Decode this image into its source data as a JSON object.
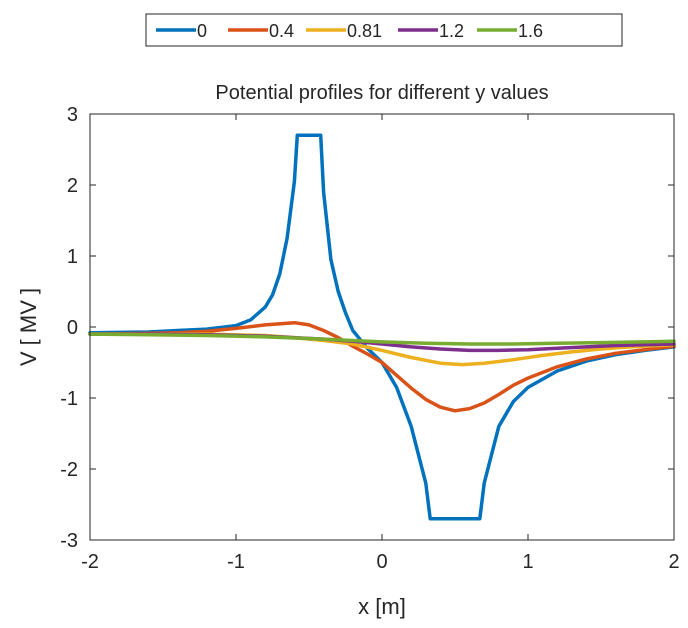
{
  "chart_data": {
    "type": "line",
    "title": "Potential profiles for different y values",
    "xlabel": "x  [m]",
    "ylabel": "V  [ MV ]",
    "xlim": [
      -2,
      2
    ],
    "ylim": [
      -3,
      3
    ],
    "xticks": [
      -2,
      -1,
      0,
      1,
      2
    ],
    "yticks": [
      -3,
      -2,
      -1,
      0,
      1,
      2,
      3
    ],
    "xtick_labels": [
      "-2",
      "-1",
      "0",
      "1",
      "2"
    ],
    "ytick_labels": [
      "-3",
      "-2",
      "-1",
      "0",
      "1",
      "2",
      "3"
    ],
    "grid": false,
    "legend_position": "top, outside, horizontal",
    "series": [
      {
        "name": "0",
        "color": "#0072BD",
        "x": [
          -2.0,
          -1.6,
          -1.4,
          -1.2,
          -1.0,
          -0.9,
          -0.8,
          -0.75,
          -0.7,
          -0.65,
          -0.6,
          -0.58,
          -0.56,
          -0.44,
          -0.42,
          -0.4,
          -0.35,
          -0.3,
          -0.25,
          -0.2,
          -0.1,
          0.0,
          0.1,
          0.2,
          0.3,
          0.33,
          0.67,
          0.7,
          0.8,
          0.9,
          1.0,
          1.2,
          1.4,
          1.6,
          1.8,
          2.0
        ],
        "y": [
          -0.08,
          -0.07,
          -0.05,
          -0.03,
          0.02,
          0.1,
          0.28,
          0.45,
          0.75,
          1.25,
          2.05,
          2.7,
          2.7,
          2.7,
          2.7,
          1.9,
          0.95,
          0.5,
          0.2,
          -0.05,
          -0.3,
          -0.5,
          -0.85,
          -1.4,
          -2.2,
          -2.7,
          -2.7,
          -2.2,
          -1.4,
          -1.05,
          -0.85,
          -0.62,
          -0.48,
          -0.39,
          -0.33,
          -0.28
        ]
      },
      {
        "name": "0.4",
        "color": "#D95319",
        "x": [
          -2.0,
          -1.6,
          -1.4,
          -1.2,
          -1.0,
          -0.8,
          -0.6,
          -0.5,
          -0.4,
          -0.3,
          -0.2,
          -0.1,
          0.0,
          0.1,
          0.2,
          0.3,
          0.4,
          0.5,
          0.6,
          0.7,
          0.8,
          0.9,
          1.0,
          1.2,
          1.4,
          1.6,
          1.8,
          2.0
        ],
        "y": [
          -0.1,
          -0.09,
          -0.08,
          -0.06,
          -0.02,
          0.03,
          0.06,
          0.03,
          -0.05,
          -0.15,
          -0.27,
          -0.38,
          -0.5,
          -0.68,
          -0.86,
          -1.02,
          -1.13,
          -1.18,
          -1.15,
          -1.07,
          -0.95,
          -0.82,
          -0.72,
          -0.56,
          -0.45,
          -0.37,
          -0.32,
          -0.27
        ]
      },
      {
        "name": "0.81",
        "color": "#EDB120",
        "x": [
          -2.0,
          -1.6,
          -1.2,
          -0.8,
          -0.6,
          -0.4,
          -0.2,
          0.0,
          0.2,
          0.4,
          0.55,
          0.7,
          0.9,
          1.1,
          1.3,
          1.5,
          1.7,
          2.0
        ],
        "y": [
          -0.1,
          -0.1,
          -0.1,
          -0.12,
          -0.15,
          -0.19,
          -0.24,
          -0.33,
          -0.43,
          -0.51,
          -0.53,
          -0.51,
          -0.46,
          -0.4,
          -0.35,
          -0.31,
          -0.28,
          -0.25
        ]
      },
      {
        "name": "1.2",
        "color": "#7E2F8E",
        "x": [
          -2.0,
          -1.6,
          -1.2,
          -0.8,
          -0.4,
          -0.2,
          0.0,
          0.2,
          0.4,
          0.6,
          0.8,
          1.0,
          1.2,
          1.4,
          1.6,
          1.8,
          2.0
        ],
        "y": [
          -0.1,
          -0.1,
          -0.11,
          -0.13,
          -0.17,
          -0.2,
          -0.24,
          -0.28,
          -0.31,
          -0.33,
          -0.33,
          -0.32,
          -0.3,
          -0.28,
          -0.26,
          -0.25,
          -0.24
        ]
      },
      {
        "name": "1.6",
        "color": "#77AC30",
        "x": [
          -2.0,
          -1.6,
          -1.2,
          -0.8,
          -0.4,
          -0.2,
          0.0,
          0.3,
          0.6,
          0.9,
          1.2,
          1.5,
          1.8,
          2.0
        ],
        "y": [
          -0.1,
          -0.11,
          -0.12,
          -0.14,
          -0.17,
          -0.19,
          -0.21,
          -0.23,
          -0.24,
          -0.24,
          -0.23,
          -0.22,
          -0.21,
          -0.2
        ]
      }
    ]
  }
}
